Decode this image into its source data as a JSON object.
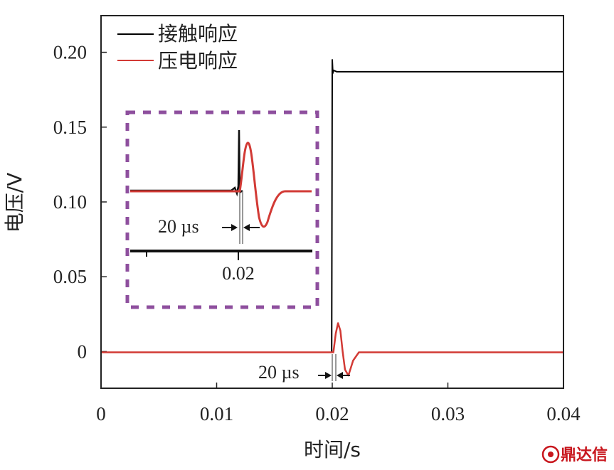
{
  "chart_data": {
    "type": "line",
    "title": "",
    "xlabel": "时间/s",
    "ylabel": "电压/V",
    "xlim": [
      0,
      0.04
    ],
    "ylim": [
      -0.0245,
      0.2245
    ],
    "x_ticks": [
      "0",
      "0.01",
      "0.02",
      "0.03",
      "0.04"
    ],
    "y_ticks": [
      "0",
      "0.05",
      "0.10",
      "0.15",
      "0.20"
    ],
    "grid": false,
    "legend_position": "top-left",
    "series": [
      {
        "name": "接触响应",
        "color": "#000000",
        "x": [
          0,
          0.01995,
          0.02,
          0.02005,
          0.0201,
          0.0204,
          0.04
        ],
        "y": [
          -0.0005,
          -0.0005,
          0.195,
          0.186,
          0.188,
          0.187,
          0.187
        ]
      },
      {
        "name": "压电响应",
        "color": "#d23a35",
        "x": [
          0,
          0.0201,
          0.0203,
          0.0205,
          0.0207,
          0.0209,
          0.0211,
          0.0214,
          0.0218,
          0.0223,
          0.04
        ],
        "y": [
          -0.0005,
          -0.0005,
          0.012,
          0.019,
          0.014,
          0.0,
          -0.012,
          -0.016,
          -0.006,
          -0.0005,
          -0.0005
        ]
      }
    ],
    "annotations": {
      "main_interval": "20 µs",
      "inset_interval": "20 µs",
      "inset_tick": "0.02"
    },
    "inset_border_color": "#8e4f9e"
  },
  "watermark": "鼎达信"
}
